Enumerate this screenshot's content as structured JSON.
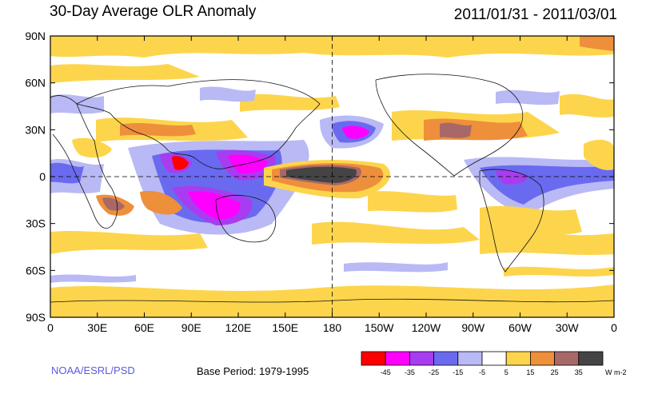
{
  "header": {
    "title": "30-Day Average OLR Anomaly",
    "date_range": "2011/01/31 - 2011/03/01"
  },
  "footer": {
    "credit": "NOAA/ESRL/PSD",
    "base_period": "Base Period: 1979-1995"
  },
  "map": {
    "lat_labels": [
      "90N",
      "60N",
      "30N",
      "0",
      "30S",
      "60S",
      "90S"
    ],
    "lon_labels": [
      "0",
      "30E",
      "60E",
      "90E",
      "120E",
      "150E",
      "180",
      "150W",
      "120W",
      "90W",
      "60W",
      "30W",
      "0"
    ]
  },
  "colorbar": {
    "colors": [
      "#ff0000",
      "#ff00ff",
      "#a83cf0",
      "#6a6af0",
      "#b9b9f5",
      "#ffffff",
      "#fdd54c",
      "#ee8f3c",
      "#a86868",
      "#444444"
    ],
    "labels": [
      "-45",
      "-35",
      "-25",
      "-15",
      "-5",
      "5",
      "15",
      "25",
      "35"
    ],
    "units": "W m-2"
  },
  "anomaly_palette": {
    "strong_negative": "#ff0000",
    "neg35": "#ff00ff",
    "neg25": "#a83cf0",
    "neg15": "#6a6af0",
    "neg5": "#b9b9f5",
    "pos5": "#fdd54c",
    "pos15": "#ee8f3c",
    "pos25": "#a86868",
    "pos35": "#444444"
  }
}
